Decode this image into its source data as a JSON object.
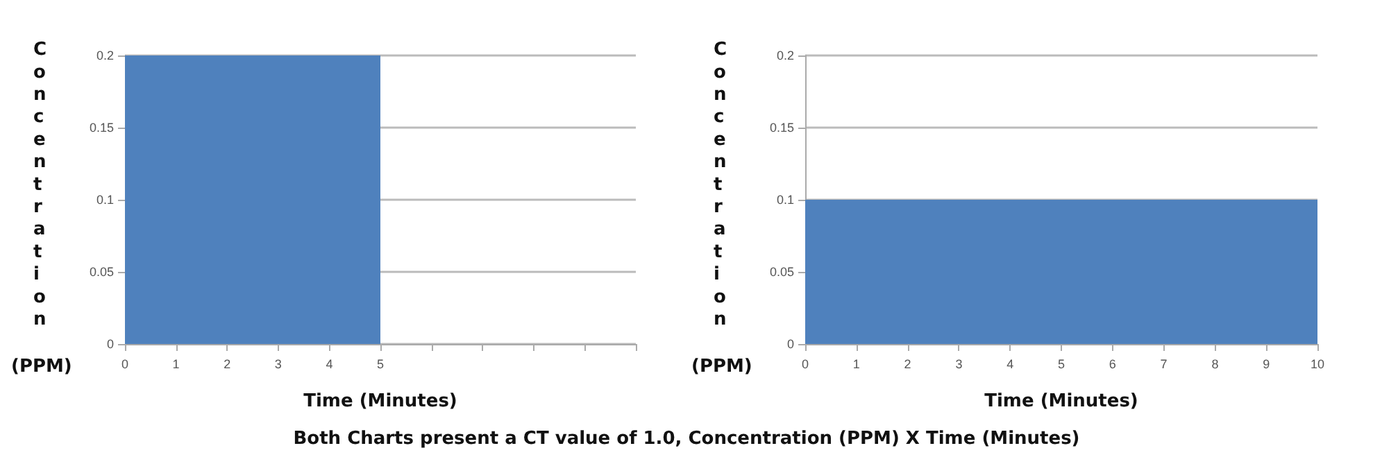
{
  "chart_data": [
    {
      "type": "area",
      "xlabel": "Time (Minutes)",
      "ylabel": "Concentration (PPM)",
      "x": [
        0,
        5
      ],
      "series": [
        {
          "color": "#4f81bd",
          "values": [
            0.2,
            0.2
          ]
        }
      ],
      "xlim": [
        0,
        10
      ],
      "xticks": [
        0,
        1,
        2,
        3,
        4,
        5,
        {
          "value": 6,
          "label": null
        },
        {
          "value": 7,
          "label": null
        },
        {
          "value": 8,
          "label": null
        },
        {
          "value": 9,
          "label": null
        },
        {
          "value": 10,
          "label": null
        }
      ],
      "ylim": [
        0,
        0.2
      ],
      "yticks": [
        0,
        0.05,
        0.1,
        0.15,
        0.2
      ],
      "grid": "y",
      "annotations": [
        "Both Charts present a CT value of 1.0, Concentration (PPM) X Time (Minutes)"
      ]
    },
    {
      "type": "area",
      "xlabel": "Time (Minutes)",
      "ylabel": "Concentration (PPM)",
      "x": [
        0,
        10
      ],
      "series": [
        {
          "color": "#4f81bd",
          "values": [
            0.1,
            0.1
          ]
        }
      ],
      "xlim": [
        0,
        10
      ],
      "xticks": [
        0,
        1,
        2,
        3,
        4,
        5,
        6,
        7,
        8,
        9,
        10
      ],
      "ylim": [
        0,
        0.2
      ],
      "yticks": [
        0,
        0.05,
        0.1,
        0.15,
        0.2
      ],
      "grid": "y"
    }
  ]
}
